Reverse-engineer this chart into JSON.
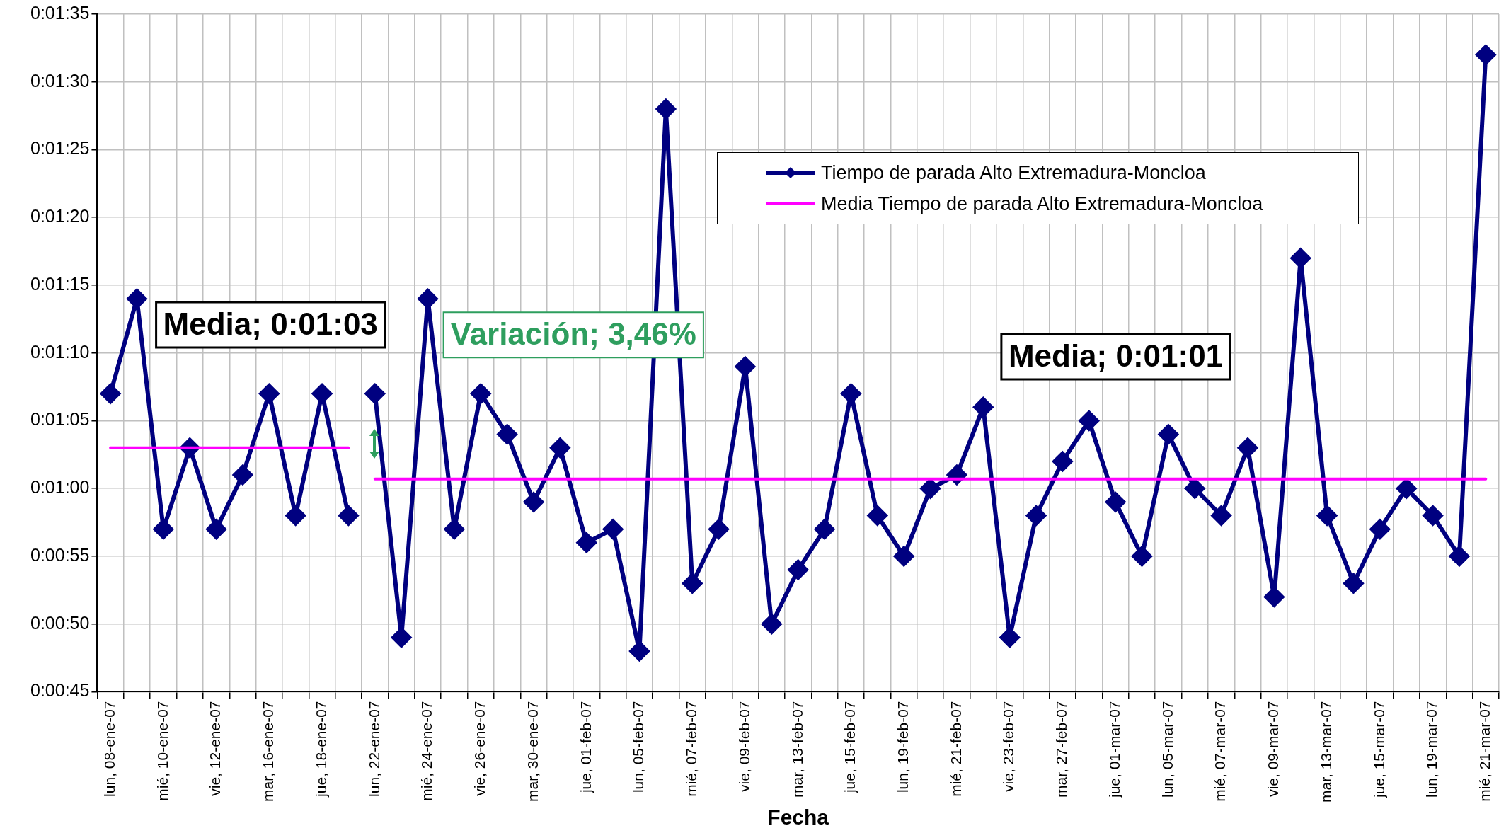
{
  "chart_data": {
    "type": "line",
    "xlabel": "Fecha",
    "categories": [
      "lun, 08-ene-07",
      null,
      "mié, 10-ene-07",
      null,
      "vie, 12-ene-07",
      null,
      "mar, 16-ene-07",
      null,
      "jue, 18-ene-07",
      null,
      "lun, 22-ene-07",
      null,
      "mié, 24-ene-07",
      null,
      "vie, 26-ene-07",
      null,
      "mar, 30-ene-07",
      null,
      "jue, 01-feb-07",
      null,
      "lun, 05-feb-07",
      null,
      "mié, 07-feb-07",
      null,
      "vie, 09-feb-07",
      null,
      "mar, 13-feb-07",
      null,
      "jue, 15-feb-07",
      null,
      "lun, 19-feb-07",
      null,
      "mié, 21-feb-07",
      null,
      "vie, 23-feb-07",
      null,
      "mar, 27-feb-07",
      null,
      "jue, 01-mar-07",
      null,
      "lun, 05-mar-07",
      null,
      "mié, 07-mar-07",
      null,
      "vie, 09-mar-07",
      null,
      "mar, 13-mar-07",
      null,
      "jue, 15-mar-07",
      null,
      "lun, 19-mar-07",
      null,
      "mié, 21-mar-07"
    ],
    "series": [
      {
        "name": "Tiempo de parada Alto Extremadura-Moncloa",
        "color": "#000080",
        "marker": "diamond",
        "values": [
          67,
          74,
          57,
          63,
          57,
          61,
          67,
          58,
          67,
          58,
          null,
          null,
          null,
          null,
          null,
          null,
          null,
          null,
          null,
          null,
          null,
          null,
          null,
          null,
          null,
          null,
          null,
          null,
          null,
          null,
          null,
          null,
          null,
          null,
          null,
          null,
          null,
          null,
          null,
          null,
          null,
          null,
          null,
          null,
          null,
          null,
          null,
          null,
          null,
          null,
          null,
          null,
          null
        ]
      },
      {
        "color": "#000080",
        "marker": "diamond",
        "values": [
          null,
          null,
          null,
          null,
          null,
          null,
          null,
          null,
          null,
          null,
          67,
          49,
          74,
          57,
          67,
          64,
          59,
          63,
          56,
          57,
          48,
          88,
          53,
          57,
          69,
          50,
          54,
          57,
          67,
          58,
          55,
          60,
          61,
          66,
          49,
          58,
          62,
          65,
          59,
          55,
          64,
          60,
          58,
          63,
          52,
          77,
          58,
          53,
          57,
          60,
          58,
          55,
          92
        ]
      },
      {
        "name": "Media Tiempo de parada Alto Extremadura-Moncloa",
        "color": "#ff00ff",
        "marker": "none",
        "values": [
          63,
          63,
          63,
          63,
          63,
          63,
          63,
          63,
          63,
          63,
          null,
          null,
          null,
          null,
          null,
          null,
          null,
          null,
          null,
          null,
          null,
          null,
          null,
          null,
          null,
          null,
          null,
          null,
          null,
          null,
          null,
          null,
          null,
          null,
          null,
          null,
          null,
          null,
          null,
          null,
          null,
          null,
          null,
          null,
          null,
          null,
          null,
          null,
          null,
          null,
          null,
          null,
          null
        ]
      },
      {
        "color": "#ff00ff",
        "marker": "none",
        "values": [
          null,
          null,
          null,
          null,
          null,
          null,
          null,
          null,
          null,
          null,
          60.7,
          60.7,
          60.7,
          60.7,
          60.7,
          60.7,
          60.7,
          60.7,
          60.7,
          60.7,
          60.7,
          60.7,
          60.7,
          60.7,
          60.7,
          60.7,
          60.7,
          60.7,
          60.7,
          60.7,
          60.7,
          60.7,
          60.7,
          60.7,
          60.7,
          60.7,
          60.7,
          60.7,
          60.7,
          60.7,
          60.7,
          60.7,
          60.7,
          60.7,
          60.7,
          60.7,
          60.7,
          60.7,
          60.7,
          60.7,
          60.7,
          60.7,
          60.7
        ]
      }
    ],
    "ylim": [
      45,
      95
    ],
    "yticks": [
      {
        "value": 45,
        "label": "0:00:45"
      },
      {
        "value": 50,
        "label": "0:00:50"
      },
      {
        "value": 55,
        "label": "0:00:55"
      },
      {
        "value": 60,
        "label": "0:01:00"
      },
      {
        "value": 65,
        "label": "0:01:05"
      },
      {
        "value": 70,
        "label": "0:01:10"
      },
      {
        "value": 75,
        "label": "0:01:15"
      },
      {
        "value": 80,
        "label": "0:01:20"
      },
      {
        "value": 85,
        "label": "0:01:25"
      },
      {
        "value": 90,
        "label": "0:01:30"
      },
      {
        "value": 95,
        "label": "0:01:35"
      }
    ],
    "grid": true,
    "legend": "top right",
    "annotations": [
      "Media; 0:01:03",
      "Variación; 3,46%",
      "Media; 0:01:01"
    ]
  }
}
